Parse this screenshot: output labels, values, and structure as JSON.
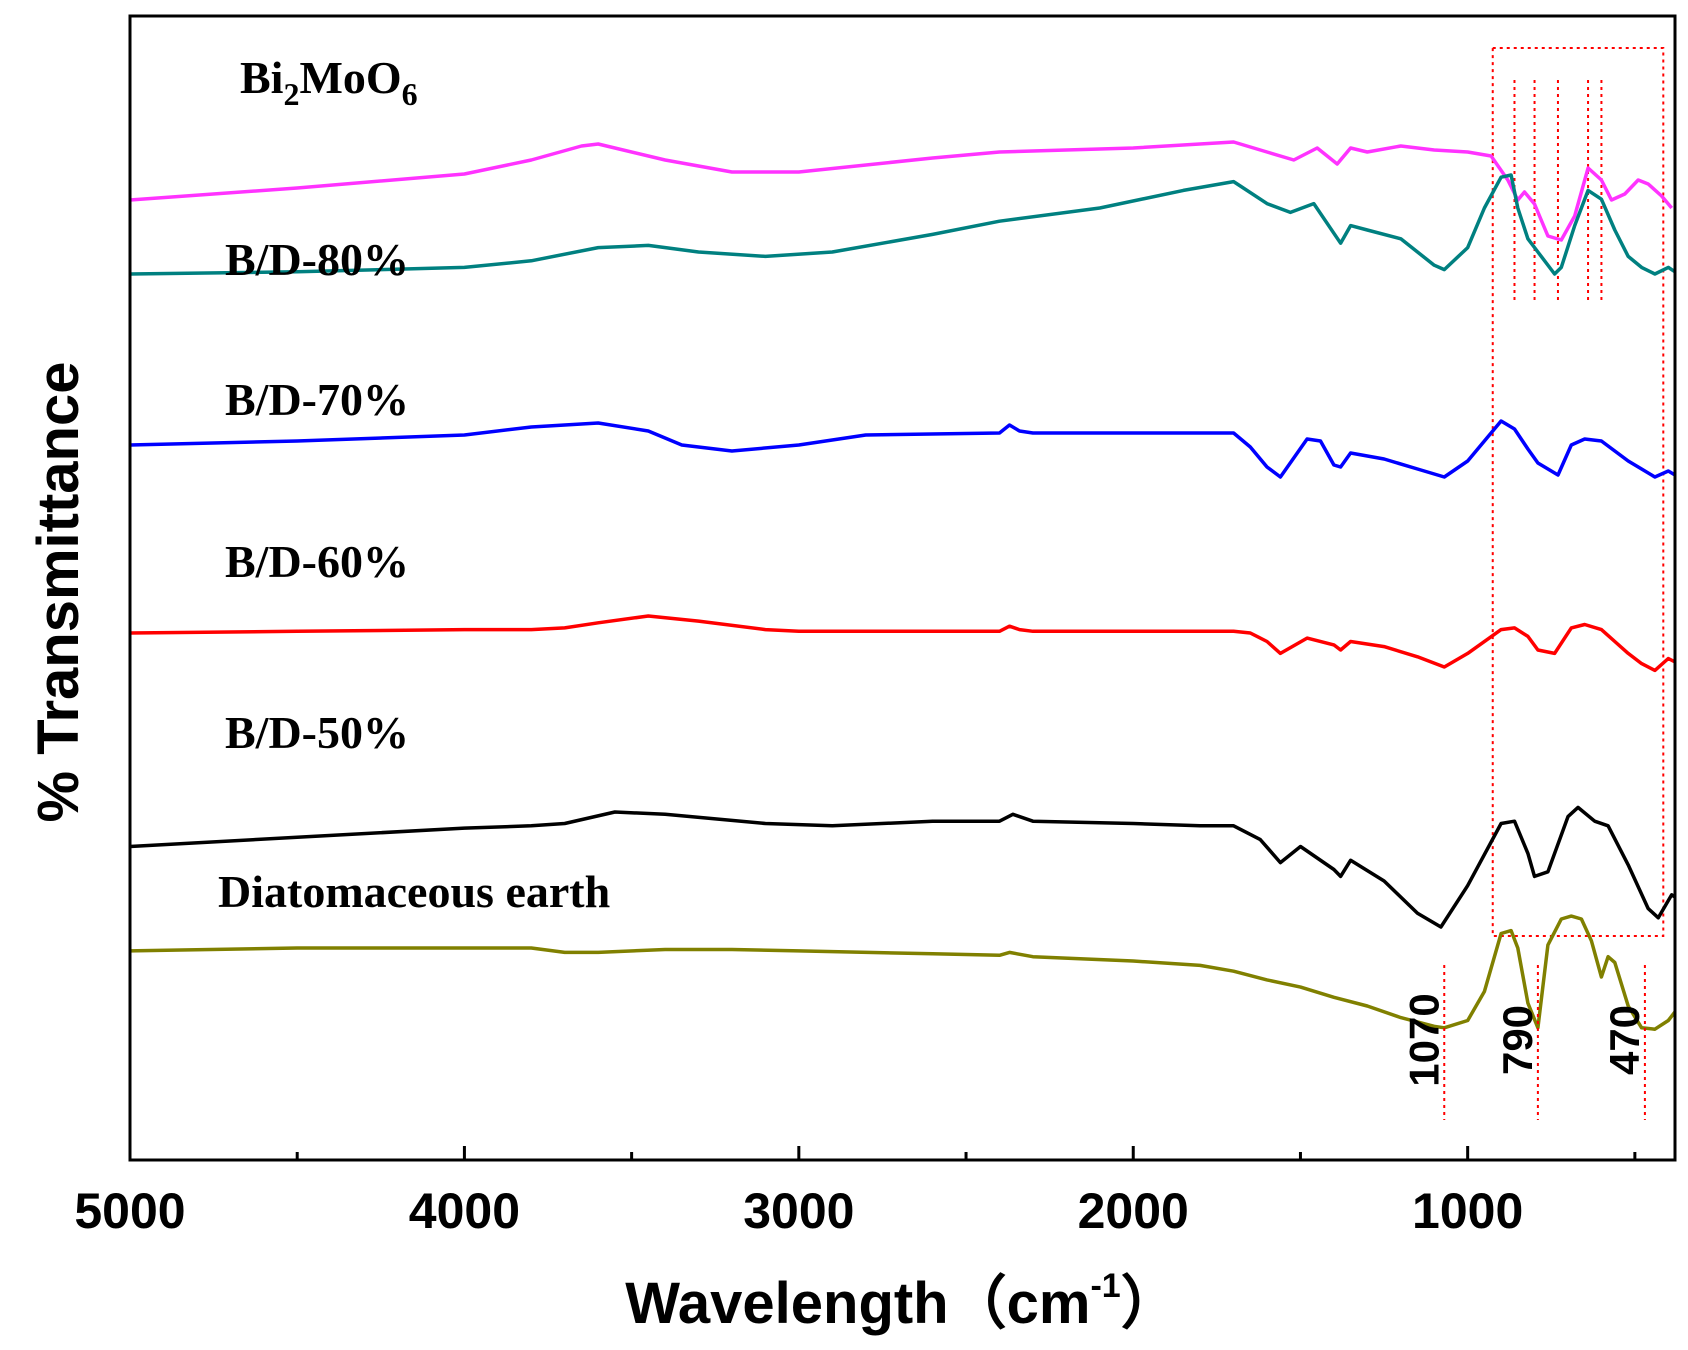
{
  "chart_data": {
    "type": "line",
    "xlabel": "Wavelength（cm",
    "xlabel_sup": "-1",
    "xlabel_close": "）",
    "ylabel": "% Transmittance",
    "xlim": [
      5000,
      380
    ],
    "x_ticks": [
      "5000",
      "4000",
      "3000",
      "2000",
      "1000"
    ],
    "x_tick_values": [
      5000,
      4000,
      3000,
      2000,
      1000
    ],
    "grid": false,
    "series": [
      {
        "name": "Bi2MoO6",
        "name_parts": [
          "Bi",
          "2",
          "MoO",
          "6"
        ],
        "color": "#ff33ff",
        "x": [
          5000,
          4500,
          4000,
          3800,
          3650,
          3600,
          3400,
          3200,
          3000,
          2600,
          2400,
          2000,
          1700,
          1680,
          1600,
          1520,
          1450,
          1390,
          1350,
          1300,
          1200,
          1100,
          1000,
          930,
          880,
          850,
          830,
          800,
          760,
          720,
          680,
          640,
          600,
          570,
          530,
          490,
          460,
          420,
          390
        ],
        "y": [
          30,
          36,
          43,
          50,
          57,
          58,
          50,
          44,
          44,
          51,
          54,
          56,
          59,
          58,
          54,
          50,
          56,
          48,
          56,
          54,
          57,
          55,
          54,
          52,
          40,
          30,
          34,
          28,
          12,
          10,
          22,
          46,
          40,
          30,
          33,
          40,
          38,
          32,
          26
        ]
      },
      {
        "name": "B/D-80%",
        "color": "#008080",
        "x": [
          5000,
          4500,
          4000,
          3800,
          3600,
          3450,
          3300,
          3100,
          2900,
          2600,
          2400,
          2100,
          1850,
          1700,
          1680,
          1600,
          1530,
          1460,
          1380,
          1350,
          1300,
          1200,
          1150,
          1100,
          1070,
          1000,
          950,
          900,
          870,
          850,
          820,
          790,
          740,
          720,
          680,
          640,
          600,
          560,
          520,
          480,
          440,
          400,
          380
        ],
        "y": [
          30,
          31,
          33,
          36,
          42,
          43,
          40,
          38,
          40,
          48,
          54,
          60,
          68,
          72,
          70,
          62,
          58,
          62,
          44,
          52,
          50,
          46,
          40,
          34,
          32,
          42,
          60,
          74,
          75,
          60,
          46,
          40,
          30,
          33,
          52,
          68,
          64,
          50,
          38,
          33,
          30,
          33,
          31
        ]
      },
      {
        "name": "B/D-70%",
        "color": "#0000ff",
        "x": [
          5000,
          4500,
          4000,
          3800,
          3600,
          3450,
          3350,
          3200,
          3000,
          2800,
          2400,
          2370,
          2340,
          2300,
          2000,
          1700,
          1650,
          1600,
          1560,
          1480,
          1440,
          1400,
          1380,
          1350,
          1250,
          1150,
          1070,
          1000,
          900,
          860,
          820,
          790,
          730,
          690,
          650,
          600,
          560,
          520,
          480,
          440,
          400,
          380
        ],
        "y": [
          50,
          52,
          55,
          59,
          61,
          57,
          50,
          47,
          50,
          55,
          56,
          60,
          57,
          56,
          56,
          56,
          49,
          39,
          34,
          53,
          52,
          40,
          39,
          46,
          43,
          38,
          34,
          42,
          62,
          58,
          48,
          41,
          35,
          50,
          53,
          52,
          47,
          42,
          38,
          34,
          37,
          35
        ]
      },
      {
        "name": "B/D-60%",
        "color": "#ff0000",
        "x": [
          5000,
          4500,
          4000,
          3800,
          3700,
          3600,
          3450,
          3300,
          3100,
          3000,
          2800,
          2400,
          2370,
          2340,
          2300,
          2000,
          1700,
          1650,
          1600,
          1560,
          1480,
          1400,
          1380,
          1350,
          1250,
          1150,
          1070,
          1000,
          900,
          860,
          820,
          790,
          740,
          690,
          650,
          600,
          560,
          520,
          480,
          440,
          400,
          380
        ],
        "y": [
          50,
          51,
          52,
          52,
          53,
          56,
          60,
          57,
          52,
          51,
          51,
          51,
          54,
          52,
          51,
          51,
          51,
          50,
          45,
          38,
          47,
          43,
          40,
          45,
          42,
          36,
          30,
          38,
          52,
          53,
          48,
          40,
          38,
          53,
          55,
          52,
          45,
          38,
          32,
          28,
          35,
          33
        ]
      },
      {
        "name": "B/D-50%",
        "color": "#000000",
        "x": [
          5000,
          4500,
          4000,
          3800,
          3700,
          3550,
          3400,
          3100,
          2900,
          2600,
          2400,
          2360,
          2300,
          2000,
          1800,
          1700,
          1620,
          1560,
          1500,
          1400,
          1380,
          1350,
          1250,
          1150,
          1080,
          1000,
          900,
          860,
          820,
          800,
          760,
          700,
          670,
          620,
          580,
          520,
          460,
          430,
          390,
          380
        ],
        "y": [
          45,
          49,
          53,
          54,
          55,
          60,
          59,
          55,
          54,
          56,
          56,
          59,
          56,
          55,
          54,
          54,
          48,
          38,
          45,
          35,
          32,
          39,
          30,
          16,
          10,
          28,
          55,
          56,
          42,
          32,
          34,
          58,
          62,
          56,
          54,
          37,
          18,
          14,
          24,
          23
        ]
      },
      {
        "name": "Diatomaceous earth",
        "color": "#808000",
        "x": [
          5000,
          4500,
          4000,
          3800,
          3700,
          3600,
          3400,
          3200,
          3000,
          2600,
          2400,
          2370,
          2300,
          2000,
          1800,
          1700,
          1600,
          1500,
          1400,
          1300,
          1200,
          1100,
          1070,
          1000,
          950,
          900,
          870,
          850,
          820,
          790,
          760,
          720,
          690,
          660,
          630,
          600,
          580,
          560,
          520,
          480,
          440,
          400,
          380
        ],
        "y": [
          58,
          60,
          60,
          60,
          57,
          57,
          59,
          59,
          58,
          56,
          55,
          57,
          54,
          51,
          48,
          44,
          38,
          33,
          26,
          20,
          12,
          6,
          5,
          10,
          30,
          70,
          72,
          60,
          22,
          5,
          62,
          80,
          82,
          80,
          65,
          40,
          54,
          50,
          20,
          5,
          4,
          10,
          16
        ]
      }
    ],
    "annotations": [
      "1070",
      "790",
      "470"
    ],
    "annotation_positions": [
      1070,
      790,
      470
    ]
  }
}
